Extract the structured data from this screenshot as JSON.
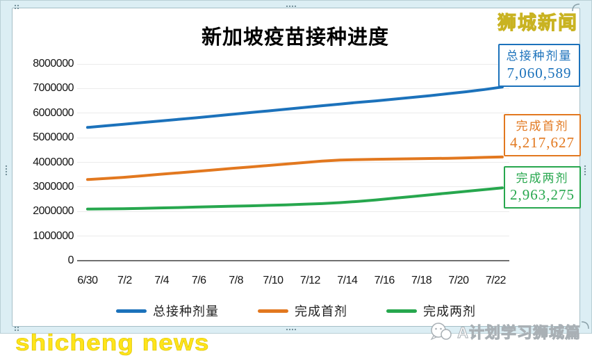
{
  "chart_data": {
    "type": "line",
    "title": "新加坡疫苗接种进度",
    "xlabel": "",
    "ylabel": "",
    "ylim": [
      0,
      8000000
    ],
    "grid": true,
    "legend_position": "bottom",
    "x": [
      "6/30",
      "7/1",
      "7/2",
      "7/3",
      "7/4",
      "7/5",
      "7/6",
      "7/7",
      "7/8",
      "7/9",
      "7/10",
      "7/11",
      "7/12",
      "7/13",
      "7/14",
      "7/15",
      "7/16",
      "7/17",
      "7/18",
      "7/19",
      "7/20",
      "7/21",
      "7/22",
      "7/23"
    ],
    "x_tick_labels": [
      "6/30",
      "7/2",
      "7/4",
      "7/6",
      "7/8",
      "7/10",
      "7/12",
      "7/14",
      "7/16",
      "7/18",
      "7/20",
      "7/22"
    ],
    "y_tick_values": [
      0,
      1000000,
      2000000,
      3000000,
      4000000,
      5000000,
      6000000,
      7000000,
      8000000
    ],
    "y_tick_labels": [
      "0",
      "1000000",
      "2000000",
      "3000000",
      "4000000",
      "5000000",
      "6000000",
      "7000000",
      "8000000"
    ],
    "series": [
      {
        "name": "总接种剂量",
        "color": "#1c72bb",
        "end_label": "7,060,589",
        "values": [
          5420000,
          5485000,
          5550000,
          5615000,
          5680000,
          5745000,
          5810000,
          5880000,
          5950000,
          6020000,
          6090000,
          6160000,
          6230000,
          6300000,
          6370000,
          6440000,
          6500000,
          6570000,
          6640000,
          6710000,
          6790000,
          6870000,
          6960000,
          7060589
        ]
      },
      {
        "name": "完成首剂",
        "color": "#e2781f",
        "end_label": "4,217,627",
        "values": [
          3300000,
          3340000,
          3390000,
          3450000,
          3510000,
          3570000,
          3630000,
          3690000,
          3750000,
          3810000,
          3870000,
          3930000,
          3990000,
          4050000,
          4090000,
          4110000,
          4125000,
          4135000,
          4145000,
          4155000,
          4165000,
          4180000,
          4200000,
          4217627
        ]
      },
      {
        "name": "完成两剂",
        "color": "#27a74e",
        "end_label": "2,963,275",
        "values": [
          2100000,
          2105000,
          2115000,
          2130000,
          2145000,
          2160000,
          2180000,
          2200000,
          2215000,
          2230000,
          2250000,
          2270000,
          2295000,
          2320000,
          2360000,
          2410000,
          2470000,
          2540000,
          2610000,
          2680000,
          2750000,
          2820000,
          2890000,
          2963275
        ]
      }
    ]
  },
  "logos": {
    "top_right": "狮城新闻"
  },
  "watermarks": {
    "bottom_left": "shicheng news",
    "bottom_right": "A计划学习狮城篇"
  },
  "colors": {
    "frame": "#dceef4",
    "grid": "#ebebeb",
    "axis": "#707070",
    "accent_blue": "#1c72bb",
    "accent_orange": "#e2781f",
    "accent_green": "#27a74e",
    "logo_yellow": "#f6e93d",
    "watermark_yellow": "#ffe41a"
  }
}
